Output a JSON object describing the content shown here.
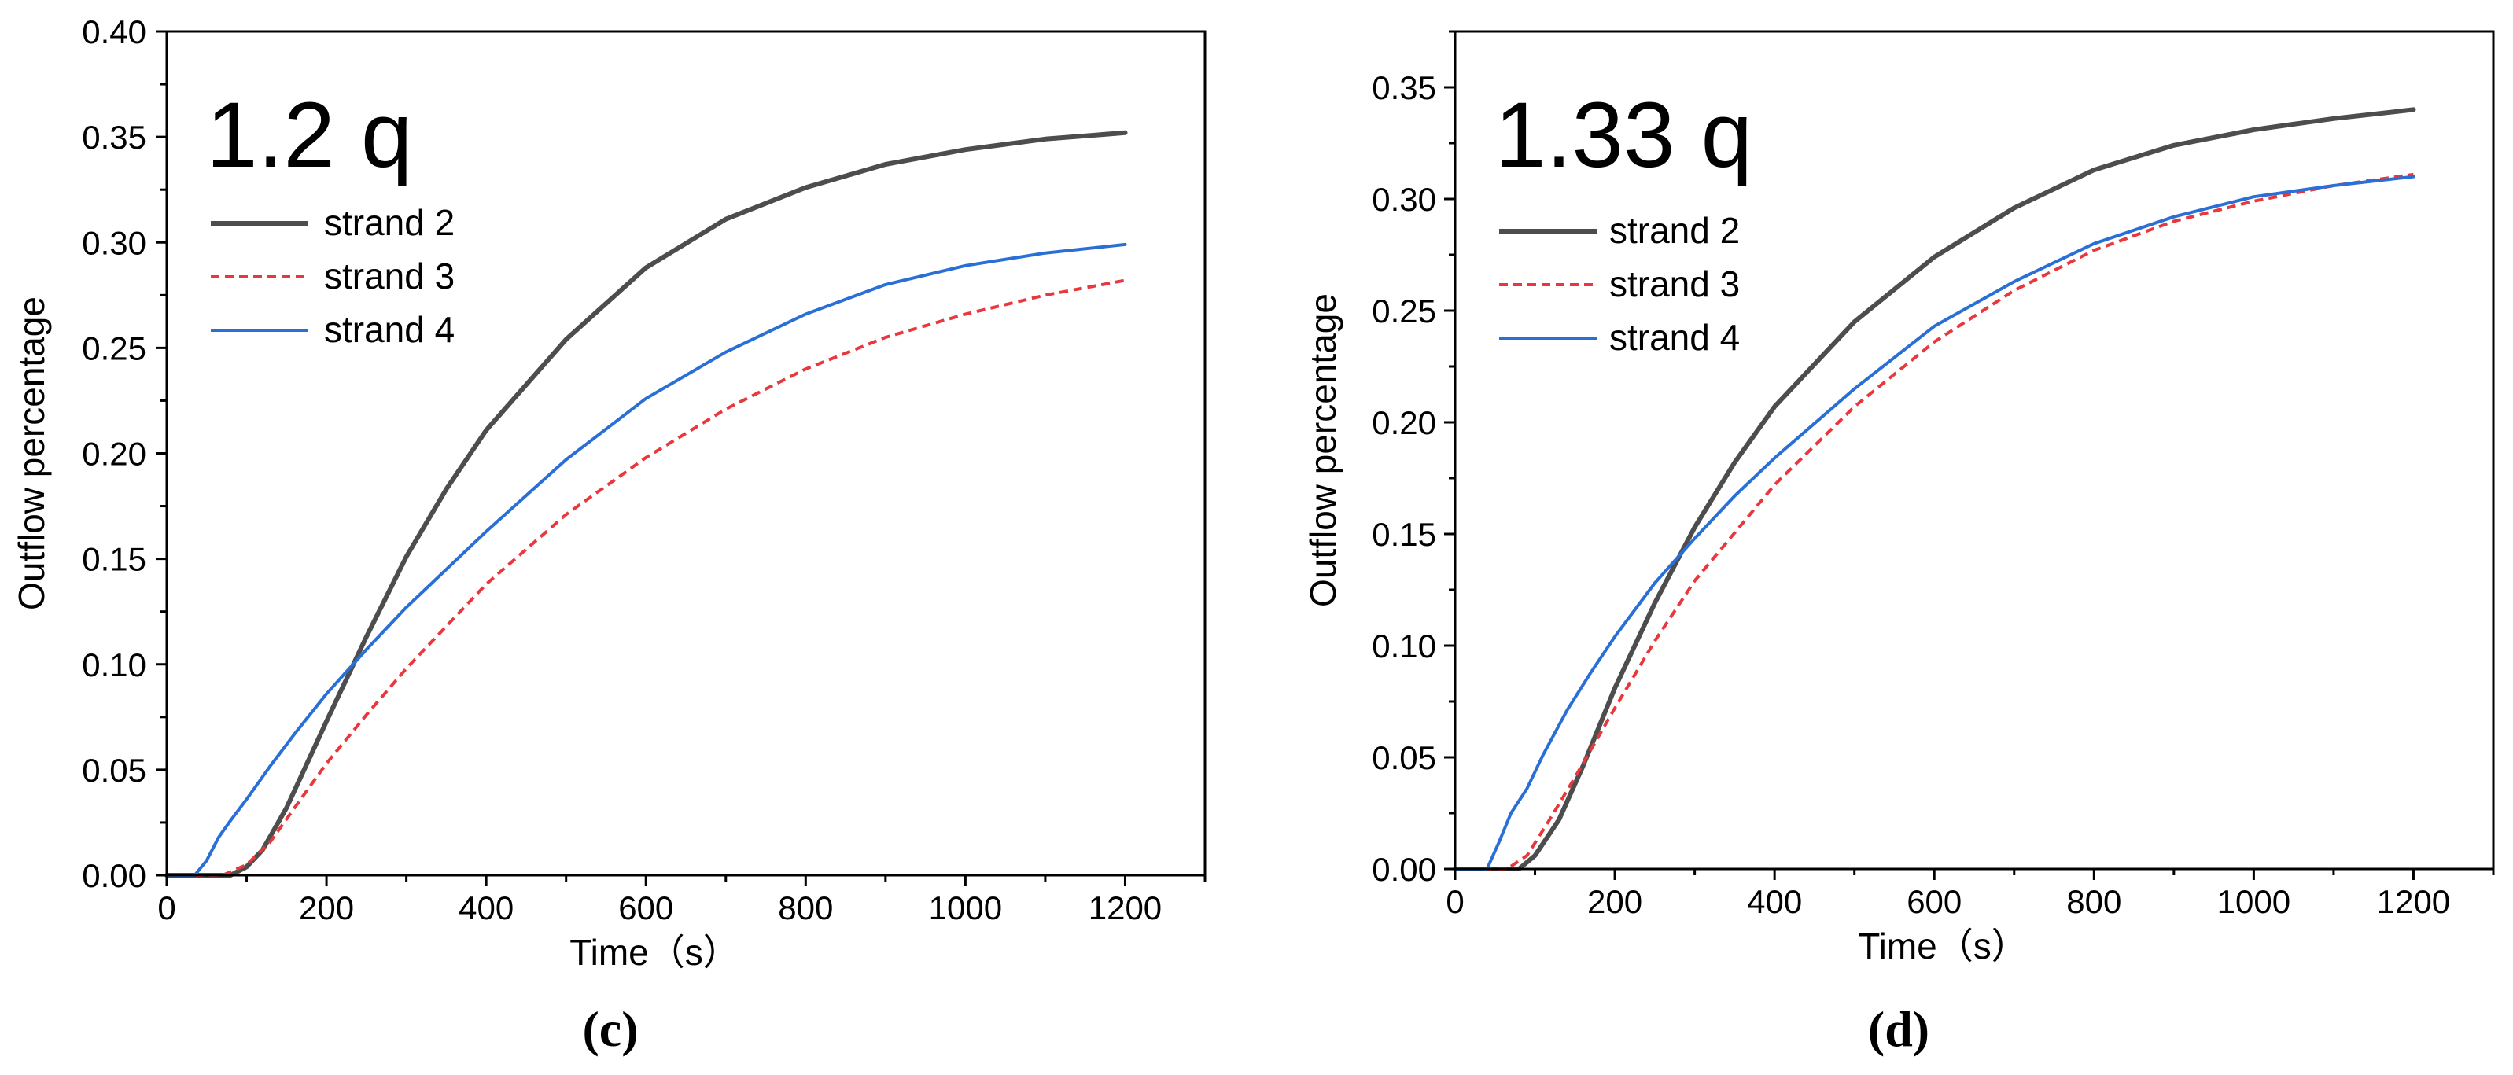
{
  "figure": {
    "background": "#ffffff"
  },
  "chart_data": [
    {
      "type": "line",
      "panel_label": "(c)",
      "annotation": "1.2 q",
      "xlabel": "Time（s）",
      "ylabel": "Outflow percentage",
      "xlim": [
        0,
        1300
      ],
      "ylim": [
        0,
        0.4
      ],
      "xticks": [
        0,
        200,
        400,
        600,
        800,
        1000,
        1200
      ],
      "xtick_labels": [
        "0",
        "200",
        "400",
        "600",
        "800",
        "1000",
        "1200"
      ],
      "yticks": [
        0,
        0.05,
        0.1,
        0.15,
        0.2,
        0.25,
        0.3,
        0.35,
        0.4
      ],
      "ytick_labels": [
        "0.00",
        "0.05",
        "0.10",
        "0.15",
        "0.20",
        "0.25",
        "0.30",
        "0.35",
        "0.40"
      ],
      "grid": false,
      "legend_position": "top-left",
      "series": [
        {
          "name": "strand 2",
          "color": "#4d4d4d",
          "style": "solid",
          "x": [
            0,
            80,
            100,
            120,
            150,
            200,
            250,
            300,
            350,
            400,
            500,
            600,
            700,
            800,
            900,
            1000,
            1100,
            1200
          ],
          "y": [
            0,
            0,
            0.004,
            0.012,
            0.032,
            0.073,
            0.113,
            0.151,
            0.183,
            0.211,
            0.254,
            0.288,
            0.311,
            0.326,
            0.337,
            0.344,
            0.349,
            0.352
          ]
        },
        {
          "name": "strand 3",
          "color": "#e8383d",
          "style": "dashed",
          "x": [
            0,
            70,
            100,
            130,
            160,
            200,
            250,
            300,
            400,
            500,
            600,
            700,
            800,
            900,
            1000,
            1100,
            1200
          ],
          "y": [
            0,
            0,
            0.005,
            0.016,
            0.032,
            0.053,
            0.076,
            0.098,
            0.138,
            0.171,
            0.198,
            0.221,
            0.24,
            0.255,
            0.266,
            0.275,
            0.282
          ]
        },
        {
          "name": "strand 4",
          "color": "#2a6fd6",
          "style": "solid",
          "x": [
            0,
            35,
            50,
            65,
            80,
            100,
            130,
            160,
            200,
            250,
            300,
            400,
            500,
            600,
            700,
            800,
            900,
            1000,
            1100,
            1200
          ],
          "y": [
            0,
            0,
            0.007,
            0.018,
            0.026,
            0.036,
            0.052,
            0.067,
            0.086,
            0.107,
            0.127,
            0.163,
            0.197,
            0.226,
            0.248,
            0.266,
            0.28,
            0.289,
            0.295,
            0.299
          ]
        }
      ]
    },
    {
      "type": "line",
      "panel_label": "(d)",
      "annotation": "1.33 q",
      "xlabel": "Time（s）",
      "ylabel": "Outflow percentage",
      "xlim": [
        0,
        1300
      ],
      "ylim": [
        0,
        0.375
      ],
      "xticks": [
        0,
        200,
        400,
        600,
        800,
        1000,
        1200
      ],
      "xtick_labels": [
        "0",
        "200",
        "400",
        "600",
        "800",
        "1000",
        "1200"
      ],
      "yticks": [
        0,
        0.05,
        0.1,
        0.15,
        0.2,
        0.25,
        0.3,
        0.35
      ],
      "ytick_labels": [
        "0.00",
        "0.05",
        "0.10",
        "0.15",
        "0.20",
        "0.25",
        "0.30",
        "0.35"
      ],
      "grid": false,
      "legend_position": "top-left",
      "series": [
        {
          "name": "strand 2",
          "color": "#4d4d4d",
          "style": "solid",
          "x": [
            0,
            80,
            100,
            130,
            160,
            200,
            250,
            300,
            350,
            400,
            500,
            600,
            700,
            800,
            900,
            1000,
            1100,
            1200
          ],
          "y": [
            0,
            0,
            0.006,
            0.022,
            0.046,
            0.081,
            0.119,
            0.153,
            0.182,
            0.207,
            0.245,
            0.274,
            0.296,
            0.313,
            0.324,
            0.331,
            0.336,
            0.34
          ]
        },
        {
          "name": "strand 3",
          "color": "#e8383d",
          "style": "dashed",
          "x": [
            0,
            65,
            90,
            120,
            150,
            200,
            250,
            300,
            400,
            500,
            600,
            700,
            800,
            900,
            1000,
            1100,
            1200
          ],
          "y": [
            0,
            0,
            0.006,
            0.023,
            0.041,
            0.072,
            0.102,
            0.129,
            0.172,
            0.207,
            0.236,
            0.259,
            0.277,
            0.29,
            0.299,
            0.306,
            0.311
          ]
        },
        {
          "name": "strand 4",
          "color": "#2a6fd6",
          "style": "solid",
          "x": [
            0,
            40,
            55,
            70,
            90,
            110,
            140,
            170,
            200,
            250,
            300,
            350,
            400,
            500,
            600,
            700,
            800,
            900,
            1000,
            1100,
            1200
          ],
          "y": [
            0,
            0,
            0.012,
            0.025,
            0.036,
            0.051,
            0.071,
            0.088,
            0.104,
            0.128,
            0.148,
            0.167,
            0.184,
            0.215,
            0.243,
            0.263,
            0.28,
            0.292,
            0.301,
            0.306,
            0.31
          ]
        }
      ]
    }
  ]
}
